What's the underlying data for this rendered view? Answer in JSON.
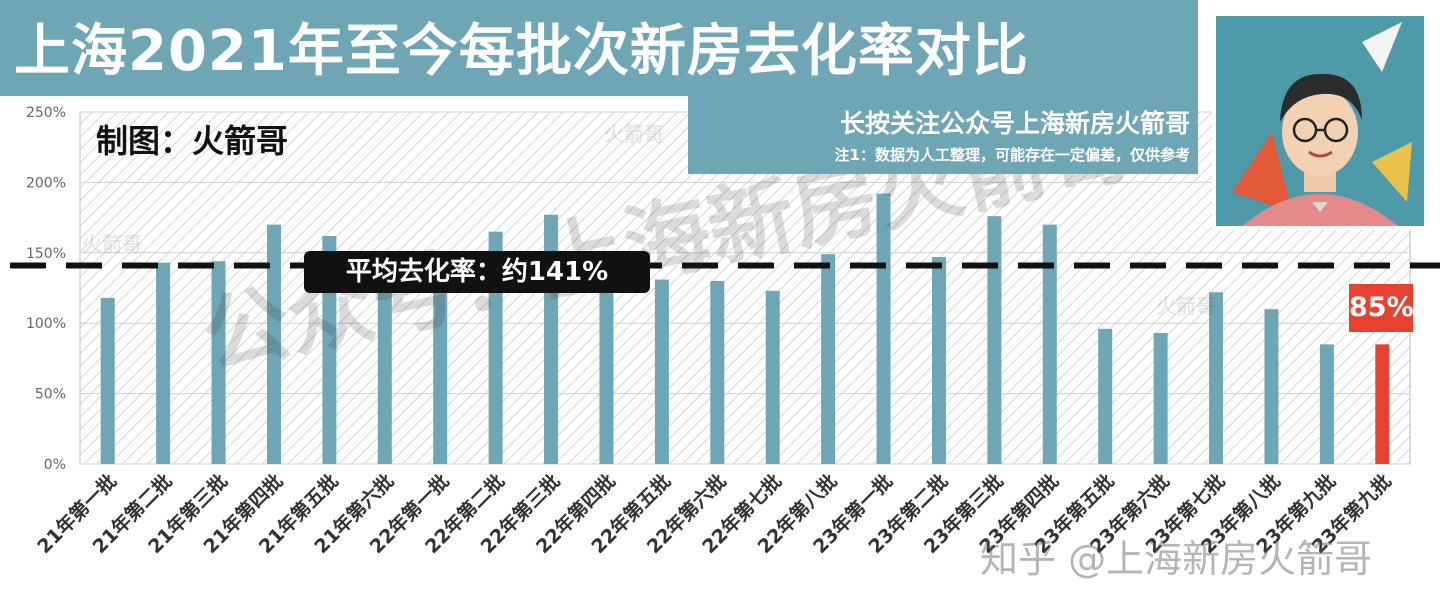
{
  "title": "上海2021年至今每批次新房去化率对比",
  "subtitle": "长按关注公众号上海新房火箭哥",
  "note": "注1：数据为人工整理，可能存在一定偏差，仅供参考",
  "author_label": "制图：火箭哥",
  "average_label": "平均去化率：约141%",
  "highlight_label": "85%",
  "watermark_main": "公众号：上海新房火箭哥",
  "watermark_small": "火箭哥",
  "watermark_zhihu": "知乎 @上海新房火箭哥",
  "colors": {
    "bar": "#6fa6b5",
    "highlight": "#e8412f",
    "header": "#6fa6b5",
    "average_line": "#111111"
  },
  "chart_data": {
    "type": "bar",
    "title": "上海2021年至今每批次新房去化率对比",
    "xlabel": "",
    "ylabel": "",
    "ylim": [
      0,
      2.5
    ],
    "yticks": [
      "0%",
      "50%",
      "100%",
      "150%",
      "200%",
      "250%"
    ],
    "grid": true,
    "legend": "none",
    "average": 1.41,
    "highlight_index": 23,
    "categories": [
      "21年第一批",
      "21年第二批",
      "21年第三批",
      "21年第四批",
      "21年第五批",
      "21年第六批",
      "22年第一批",
      "22年第二批",
      "22年第三批",
      "22年第四批",
      "22年第五批",
      "22年第六批",
      "22年第七批",
      "22年第八批",
      "23年第一批",
      "23年第二批",
      "23年第三批",
      "23年第四批",
      "23年第五批",
      "23年第六批",
      "23年第七批",
      "23年第八批",
      "23年第九批",
      "23年第九批"
    ],
    "values": [
      1.18,
      1.43,
      1.44,
      1.7,
      1.62,
      1.27,
      1.24,
      1.65,
      1.77,
      1.22,
      1.31,
      1.3,
      1.23,
      1.49,
      1.92,
      1.47,
      1.76,
      1.7,
      0.96,
      0.93,
      1.22,
      1.1,
      0.85,
      0.85
    ]
  }
}
